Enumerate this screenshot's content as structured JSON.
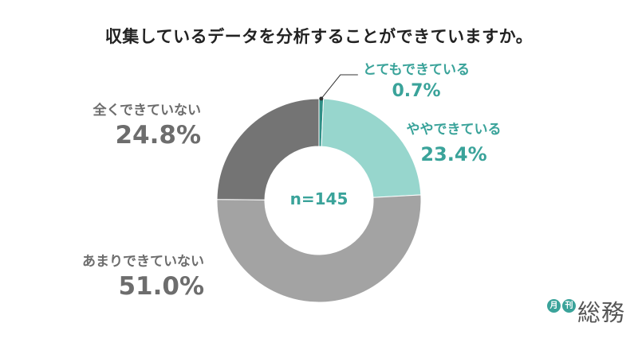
{
  "title": "収集しているデータを分析することができていますか。",
  "center_label": "n=145",
  "logo": {
    "left_char": "月",
    "right_char": "刊",
    "word": "総務"
  },
  "colors": {
    "slice1": "#2e8f86",
    "slice2": "#97d6cd",
    "slice3": "#a3a3a3",
    "slice4": "#747474",
    "teal_text": "#3aa39a",
    "gray_text": "#6d6d6d",
    "leader": "#333333"
  },
  "chart_data": {
    "type": "pie",
    "donut": true,
    "title": "収集しているデータを分析することができていますか。",
    "center_text": "n=145",
    "slices": [
      {
        "label": "とてもできている",
        "value": 0.7,
        "value_label": "0.7%"
      },
      {
        "label": "ややできている",
        "value": 23.4,
        "value_label": "23.4%"
      },
      {
        "label": "あまりできていない",
        "value": 51.0,
        "value_label": "51.0%"
      },
      {
        "label": "全くできていない",
        "value": 24.8,
        "value_label": "24.8%"
      }
    ]
  }
}
